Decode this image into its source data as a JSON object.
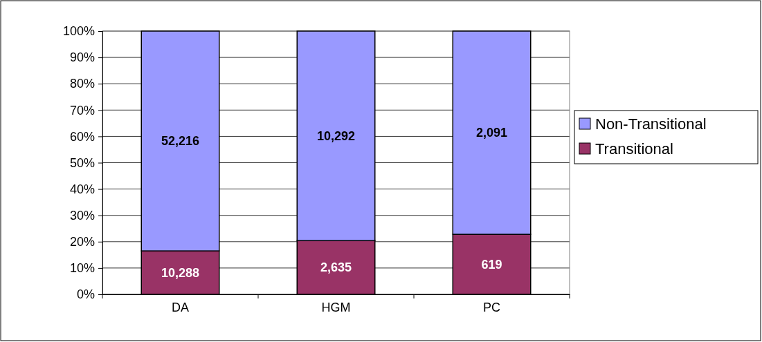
{
  "chart_data": {
    "type": "bar",
    "stacked": true,
    "categories": [
      "DA",
      "HGM",
      "PC"
    ],
    "series": [
      {
        "name": "Transitional",
        "color": "#993366",
        "values": [
          16.5,
          20.4,
          22.8
        ]
      },
      {
        "name": "Non-Transitional",
        "color": "#9999ff",
        "values": [
          83.5,
          79.6,
          77.2
        ]
      }
    ],
    "annotations": [
      "10,288",
      "2,635",
      "619",
      "52,216",
      "10,292",
      "2,091"
    ],
    "ylim": [
      0,
      100
    ],
    "yticks": [
      {
        "value": 0,
        "label": "0%"
      },
      {
        "value": 10,
        "label": "10%"
      },
      {
        "value": 20,
        "label": "20%"
      },
      {
        "value": 30,
        "label": "30%"
      },
      {
        "value": 40,
        "label": "40%"
      },
      {
        "value": 50,
        "label": "50%"
      },
      {
        "value": 60,
        "label": "60%"
      },
      {
        "value": 70,
        "label": "70%"
      },
      {
        "value": 80,
        "label": "80%"
      },
      {
        "value": 90,
        "label": "90%"
      },
      {
        "value": 100,
        "label": "100%"
      }
    ],
    "grid": "y",
    "legend": "right"
  }
}
